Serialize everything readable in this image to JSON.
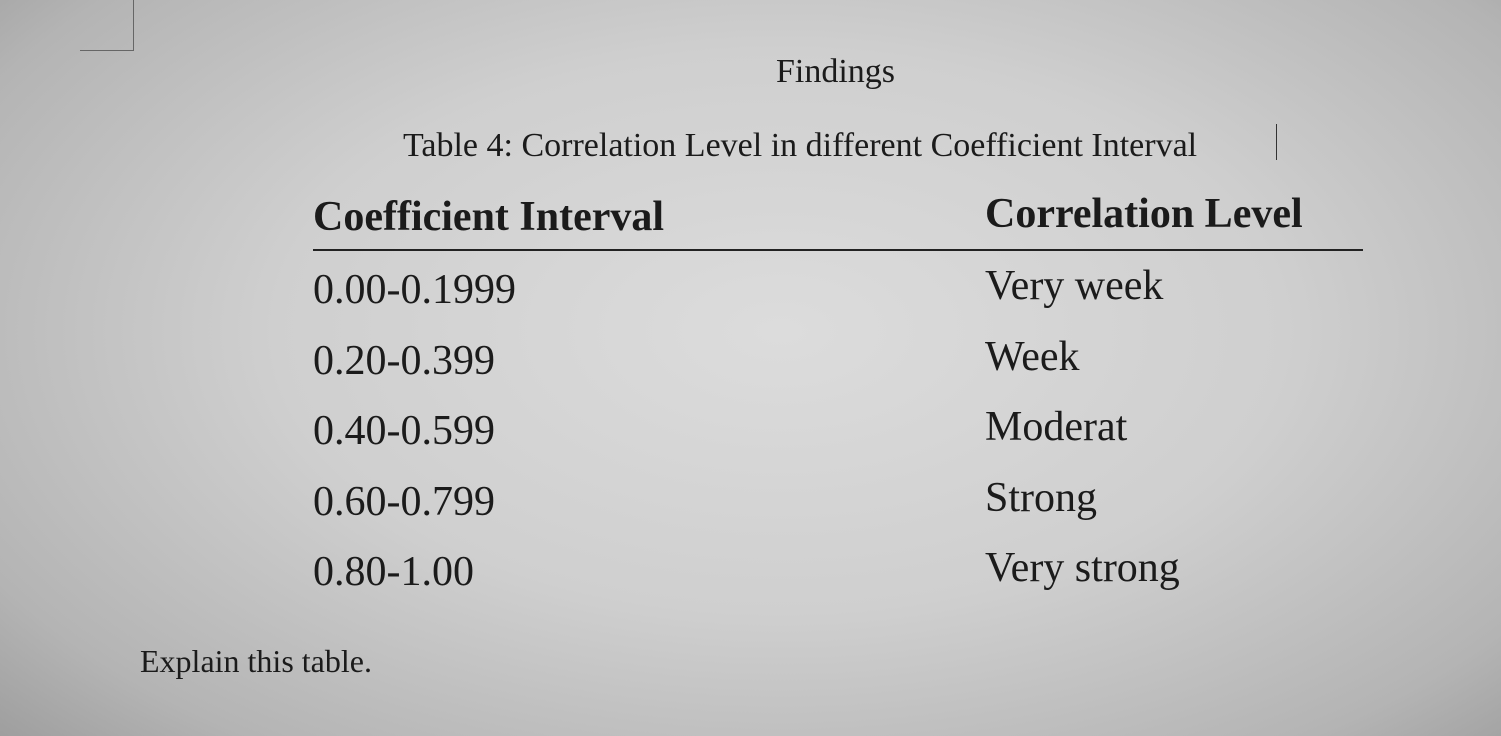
{
  "heading": "Findings",
  "caption": "Table 4: Correlation Level in different Coefficient Interval",
  "table": {
    "header": [
      "Coefficient Interval",
      "Correlation Level"
    ],
    "rows": [
      [
        "0.00-0.1999",
        "Very week"
      ],
      [
        "0.20-0.399",
        "Week"
      ],
      [
        "0.40-0.599",
        "Moderat"
      ],
      [
        "0.60-0.799",
        "Strong"
      ],
      [
        "0.80-1.00",
        "Very strong"
      ]
    ]
  },
  "prompt": "Explain this table."
}
